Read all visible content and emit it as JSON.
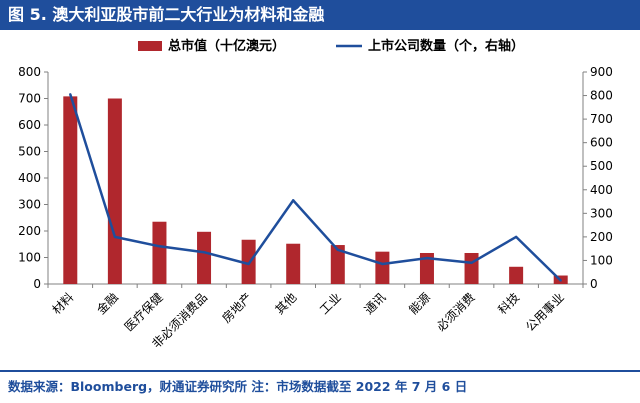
{
  "figure_title": "图 5. 澳大利亚股市前二大行业为材料和金融",
  "footer": "数据来源：Bloomberg，财通证券研究所   注：市场数据截至 2022 年 7 月 6 日",
  "colors": {
    "bar": "#b0272d",
    "line": "#1f4e9c",
    "title_bg": "#1f4e9c"
  },
  "chart_data": {
    "type": "bar",
    "categories": [
      "材料",
      "金融",
      "医疗保健",
      "非必须消费品",
      "房地产",
      "其他",
      "工业",
      "通讯",
      "能源",
      "必须消费",
      "科技",
      "公用事业"
    ],
    "series": [
      {
        "name": "总市值（十亿澳元）",
        "type": "bar",
        "axis": "left",
        "values": [
          708,
          700,
          235,
          197,
          167,
          152,
          147,
          122,
          117,
          117,
          65,
          32
        ]
      },
      {
        "name": "上市公司数量（个，右轴）",
        "type": "line",
        "axis": "right",
        "values": [
          805,
          200,
          160,
          135,
          85,
          355,
          145,
          85,
          110,
          90,
          200,
          15
        ]
      }
    ],
    "y_left": {
      "min": 0,
      "max": 800,
      "ticks": [
        0,
        100,
        200,
        300,
        400,
        500,
        600,
        700,
        800
      ]
    },
    "y_right": {
      "min": 0,
      "max": 900,
      "ticks": [
        0,
        100,
        200,
        300,
        400,
        500,
        600,
        700,
        800,
        900
      ]
    },
    "legend_position": "top",
    "grid": false
  }
}
